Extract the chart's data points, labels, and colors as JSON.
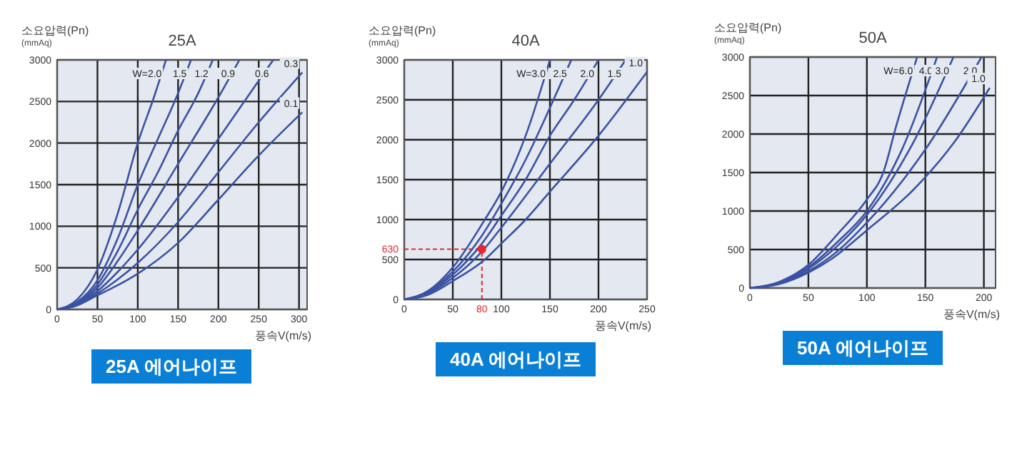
{
  "chart_data": [
    {
      "type": "line",
      "title": "25A",
      "xlabel": "풍속V(m/s)",
      "ylabel": "소요압력(Pn)\n(mmAq)",
      "xlim": [
        0,
        310
      ],
      "ylim": [
        0,
        3000
      ],
      "xticks": [
        0,
        50,
        100,
        150,
        200,
        250,
        300
      ],
      "yticks": [
        0,
        500,
        1000,
        1500,
        2000,
        2500,
        3000
      ],
      "grid": true,
      "annotations": [
        "25A 에어나이프"
      ],
      "series": [
        {
          "name": "W=2.0",
          "color": "#3b52a3",
          "x": [
            0,
            25,
            50,
            75,
            100,
            120,
            135
          ],
          "values": [
            0,
            120,
            480,
            1150,
            2000,
            2550,
            3000
          ]
        },
        {
          "name": "1.5",
          "color": "#3b52a3",
          "x": [
            0,
            25,
            50,
            75,
            100,
            125,
            150,
            166
          ],
          "values": [
            0,
            90,
            350,
            850,
            1500,
            2050,
            2600,
            3000
          ]
        },
        {
          "name": "1.2",
          "color": "#3b52a3",
          "x": [
            0,
            25,
            50,
            75,
            100,
            125,
            150,
            175,
            193
          ],
          "values": [
            0,
            80,
            300,
            700,
            1200,
            1650,
            2150,
            2600,
            3000
          ]
        },
        {
          "name": "0.9",
          "color": "#3b52a3",
          "x": [
            0,
            25,
            50,
            75,
            100,
            150,
            200,
            226
          ],
          "values": [
            0,
            70,
            260,
            580,
            950,
            1750,
            2550,
            3000
          ]
        },
        {
          "name": "0.6",
          "color": "#3b52a3",
          "x": [
            0,
            25,
            50,
            75,
            100,
            150,
            200,
            250,
            268
          ],
          "values": [
            0,
            60,
            220,
            450,
            720,
            1350,
            2050,
            2750,
            3000
          ]
        },
        {
          "name": "0.3",
          "color": "#3b52a3",
          "x": [
            0,
            25,
            50,
            75,
            100,
            150,
            200,
            250,
            304
          ],
          "values": [
            0,
            50,
            190,
            360,
            560,
            1050,
            1650,
            2250,
            2850
          ]
        },
        {
          "name": "0.1",
          "color": "#3b52a3",
          "x": [
            0,
            25,
            50,
            75,
            100,
            150,
            200,
            250,
            304
          ],
          "values": [
            0,
            50,
            170,
            290,
            430,
            800,
            1320,
            1850,
            2370
          ]
        }
      ]
    },
    {
      "type": "line",
      "title": "40A",
      "xlabel": "풍속V(m/s)",
      "ylabel": "소요압력(Pn)\n(mmAq)",
      "xlim": [
        0,
        250
      ],
      "ylim": [
        0,
        3000
      ],
      "xticks": [
        0,
        50,
        100,
        150,
        200,
        250
      ],
      "yticks": [
        0,
        500,
        1000,
        1500,
        2000,
        2500,
        3000
      ],
      "grid": true,
      "annotations": [
        {
          "text": "630",
          "x": 80,
          "y": 630
        },
        {
          "text": "80",
          "x": 80,
          "y": 630
        },
        "40A 에어나이프"
      ],
      "series": [
        {
          "name": "W=3.0",
          "color": "#3b52a3",
          "x": [
            0,
            25,
            50,
            83,
            100,
            125,
            150
          ],
          "values": [
            0,
            110,
            400,
            1000,
            1350,
            2050,
            3000
          ]
        },
        {
          "name": "2.5",
          "color": "#3b52a3",
          "x": [
            0,
            25,
            50,
            80,
            100,
            125,
            150,
            172
          ],
          "values": [
            0,
            100,
            350,
            800,
            1200,
            1750,
            2400,
            3000
          ]
        },
        {
          "name": "2.0",
          "color": "#3b52a3",
          "x": [
            0,
            25,
            50,
            80,
            100,
            125,
            150,
            175,
            200
          ],
          "values": [
            0,
            90,
            310,
            700,
            1050,
            1500,
            2050,
            2500,
            3000
          ]
        },
        {
          "name": "1.5",
          "color": "#3b52a3",
          "x": [
            0,
            25,
            50,
            80,
            100,
            150,
            200,
            228
          ],
          "values": [
            0,
            80,
            270,
            600,
            900,
            1700,
            2500,
            3000
          ]
        },
        {
          "name": "1.0",
          "color": "#3b52a3",
          "x": [
            0,
            25,
            50,
            83,
            100,
            125,
            150,
            200,
            250
          ],
          "values": [
            0,
            60,
            230,
            500,
            700,
            1000,
            1350,
            2050,
            2850
          ]
        },
        {
          "type": "scatter",
          "color": "#e8262c",
          "x": [
            80
          ],
          "values": [
            630
          ]
        }
      ]
    },
    {
      "type": "line",
      "title": "50A",
      "xlabel": "풍속V(m/s)",
      "ylabel": "소요압력(Pn)\n(mmAq)",
      "xlim": [
        0,
        210
      ],
      "ylim": [
        0,
        3000
      ],
      "xticks": [
        0,
        50,
        100,
        150,
        200
      ],
      "yticks": [
        0,
        500,
        1000,
        1500,
        2000,
        2500,
        3000
      ],
      "grid": true,
      "annotations": [
        "50A 에어나이프"
      ],
      "series": [
        {
          "name": "W=6.0",
          "color": "#3b52a3",
          "x": [
            0,
            25,
            50,
            75,
            100,
            114,
            125,
            143
          ],
          "values": [
            0,
            80,
            300,
            700,
            1150,
            1500,
            2100,
            3000
          ]
        },
        {
          "name": "4.0",
          "color": "#3b52a3",
          "x": [
            0,
            25,
            50,
            75,
            100,
            130,
            160
          ],
          "values": [
            0,
            70,
            270,
            600,
            1000,
            1800,
            3000
          ]
        },
        {
          "name": "3.0",
          "color": "#3b52a3",
          "x": [
            0,
            25,
            50,
            75,
            100,
            140,
            174
          ],
          "values": [
            0,
            60,
            250,
            550,
            950,
            1900,
            3000
          ]
        },
        {
          "name": "2.0",
          "color": "#3b52a3",
          "x": [
            0,
            25,
            50,
            75,
            100,
            150,
            198
          ],
          "values": [
            0,
            60,
            220,
            480,
            850,
            1800,
            3000
          ]
        },
        {
          "name": "1.0",
          "color": "#3b52a3",
          "x": [
            0,
            25,
            50,
            70,
            100,
            140,
            175,
            205
          ],
          "values": [
            0,
            50,
            200,
            380,
            750,
            1280,
            1900,
            2600
          ]
        }
      ]
    }
  ]
}
